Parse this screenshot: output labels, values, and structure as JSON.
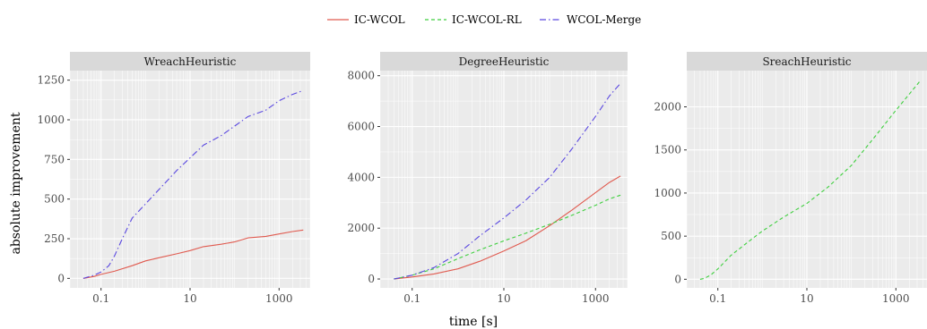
{
  "chart_data": {
    "type": "line",
    "x_scale": "log10",
    "xlabel": "time [s]",
    "ylabel": "absolute improvement",
    "legend": {
      "placement": "top",
      "entries": [
        {
          "name": "IC-WCOL",
          "color": "#e05a4f",
          "dash": "solid"
        },
        {
          "name": "IC-WCOL-RL",
          "color": "#3fcf3f",
          "dash": "dashed"
        },
        {
          "name": "WCOL-Merge",
          "color": "#5a48e0",
          "dash": "dotdash"
        }
      ]
    },
    "grid": true,
    "panels": [
      {
        "strip": "WreachHeuristic",
        "xlim": [
          0.02,
          5000
        ],
        "ylim": [
          -60,
          1310
        ],
        "x_ticks": [
          {
            "v": 0.1,
            "label": "0.1"
          },
          {
            "v": 10,
            "label": "10"
          },
          {
            "v": 1000,
            "label": "1000"
          }
        ],
        "y_ticks": [
          {
            "v": 0,
            "label": "0"
          },
          {
            "v": 250,
            "label": "250"
          },
          {
            "v": 500,
            "label": "500"
          },
          {
            "v": 750,
            "label": "750"
          },
          {
            "v": 1000,
            "label": "1000"
          },
          {
            "v": 1250,
            "label": "1250"
          }
        ],
        "series": [
          {
            "name": "IC-WCOL",
            "x": [
              0.04,
              0.07,
              0.1,
              0.2,
              0.5,
              1,
              2,
              5,
              10,
              20,
              50,
              100,
              200,
              500,
              1000,
              2000,
              3500
            ],
            "y": [
              0,
              12,
              25,
              45,
              80,
              110,
              130,
              155,
              175,
              200,
              215,
              230,
              255,
              265,
              280,
              295,
              305
            ]
          },
          {
            "name": "WCOL-Merge",
            "x": [
              0.04,
              0.07,
              0.1,
              0.15,
              0.2,
              0.3,
              0.5,
              1,
              2,
              5,
              10,
              20,
              50,
              100,
              200,
              500,
              1000,
              2000,
              3500
            ],
            "y": [
              0,
              20,
              40,
              80,
              140,
              250,
              380,
              470,
              560,
              680,
              760,
              840,
              900,
              960,
              1020,
              1060,
              1120,
              1160,
              1185
            ]
          }
        ]
      },
      {
        "strip": "DegreeHeuristic",
        "xlim": [
          0.02,
          5000
        ],
        "ylim": [
          -350,
          8200
        ],
        "x_ticks": [
          {
            "v": 0.1,
            "label": "0.1"
          },
          {
            "v": 10,
            "label": "10"
          },
          {
            "v": 1000,
            "label": "1000"
          }
        ],
        "y_ticks": [
          {
            "v": 0,
            "label": "0"
          },
          {
            "v": 2000,
            "label": "2000"
          },
          {
            "v": 4000,
            "label": "4000"
          },
          {
            "v": 6000,
            "label": "6000"
          },
          {
            "v": 8000,
            "label": "8000"
          }
        ],
        "series": [
          {
            "name": "IC-WCOL",
            "x": [
              0.04,
              0.1,
              0.3,
              1,
              3,
              10,
              30,
              100,
              300,
              1000,
              2000,
              3500
            ],
            "y": [
              0,
              80,
              200,
              400,
              700,
              1100,
              1500,
              2100,
              2700,
              3400,
              3800,
              4050
            ]
          },
          {
            "name": "IC-WCOL-RL",
            "x": [
              0.04,
              0.1,
              0.3,
              1,
              3,
              10,
              30,
              100,
              300,
              1000,
              2000,
              3500
            ],
            "y": [
              0,
              150,
              400,
              800,
              1150,
              1500,
              1800,
              2150,
              2500,
              2900,
              3150,
              3300
            ]
          },
          {
            "name": "WCOL-Merge",
            "x": [
              0.04,
              0.1,
              0.3,
              1,
              3,
              10,
              30,
              100,
              300,
              1000,
              2000,
              3500
            ],
            "y": [
              0,
              150,
              450,
              1000,
              1700,
              2400,
              3100,
              4000,
              5100,
              6400,
              7200,
              7700
            ]
          }
        ]
      },
      {
        "strip": "SreachHeuristic",
        "xlim": [
          0.02,
          5000
        ],
        "ylim": [
          -100,
          2420
        ],
        "x_ticks": [
          {
            "v": 0.1,
            "label": "0.1"
          },
          {
            "v": 10,
            "label": "10"
          },
          {
            "v": 1000,
            "label": "1000"
          }
        ],
        "y_ticks": [
          {
            "v": 0,
            "label": "0"
          },
          {
            "v": 500,
            "label": "500"
          },
          {
            "v": 1000,
            "label": "1000"
          },
          {
            "v": 1500,
            "label": "1500"
          },
          {
            "v": 2000,
            "label": "2000"
          }
        ],
        "series": [
          {
            "name": "IC-WCOL-RL",
            "x": [
              0.04,
              0.05,
              0.07,
              0.1,
              0.2,
              0.5,
              1,
              3,
              10,
              30,
              100,
              300,
              1000,
              3500
            ],
            "y": [
              0,
              10,
              50,
              120,
              280,
              440,
              560,
              720,
              880,
              1070,
              1320,
              1620,
              1960,
              2300
            ]
          }
        ]
      }
    ]
  }
}
